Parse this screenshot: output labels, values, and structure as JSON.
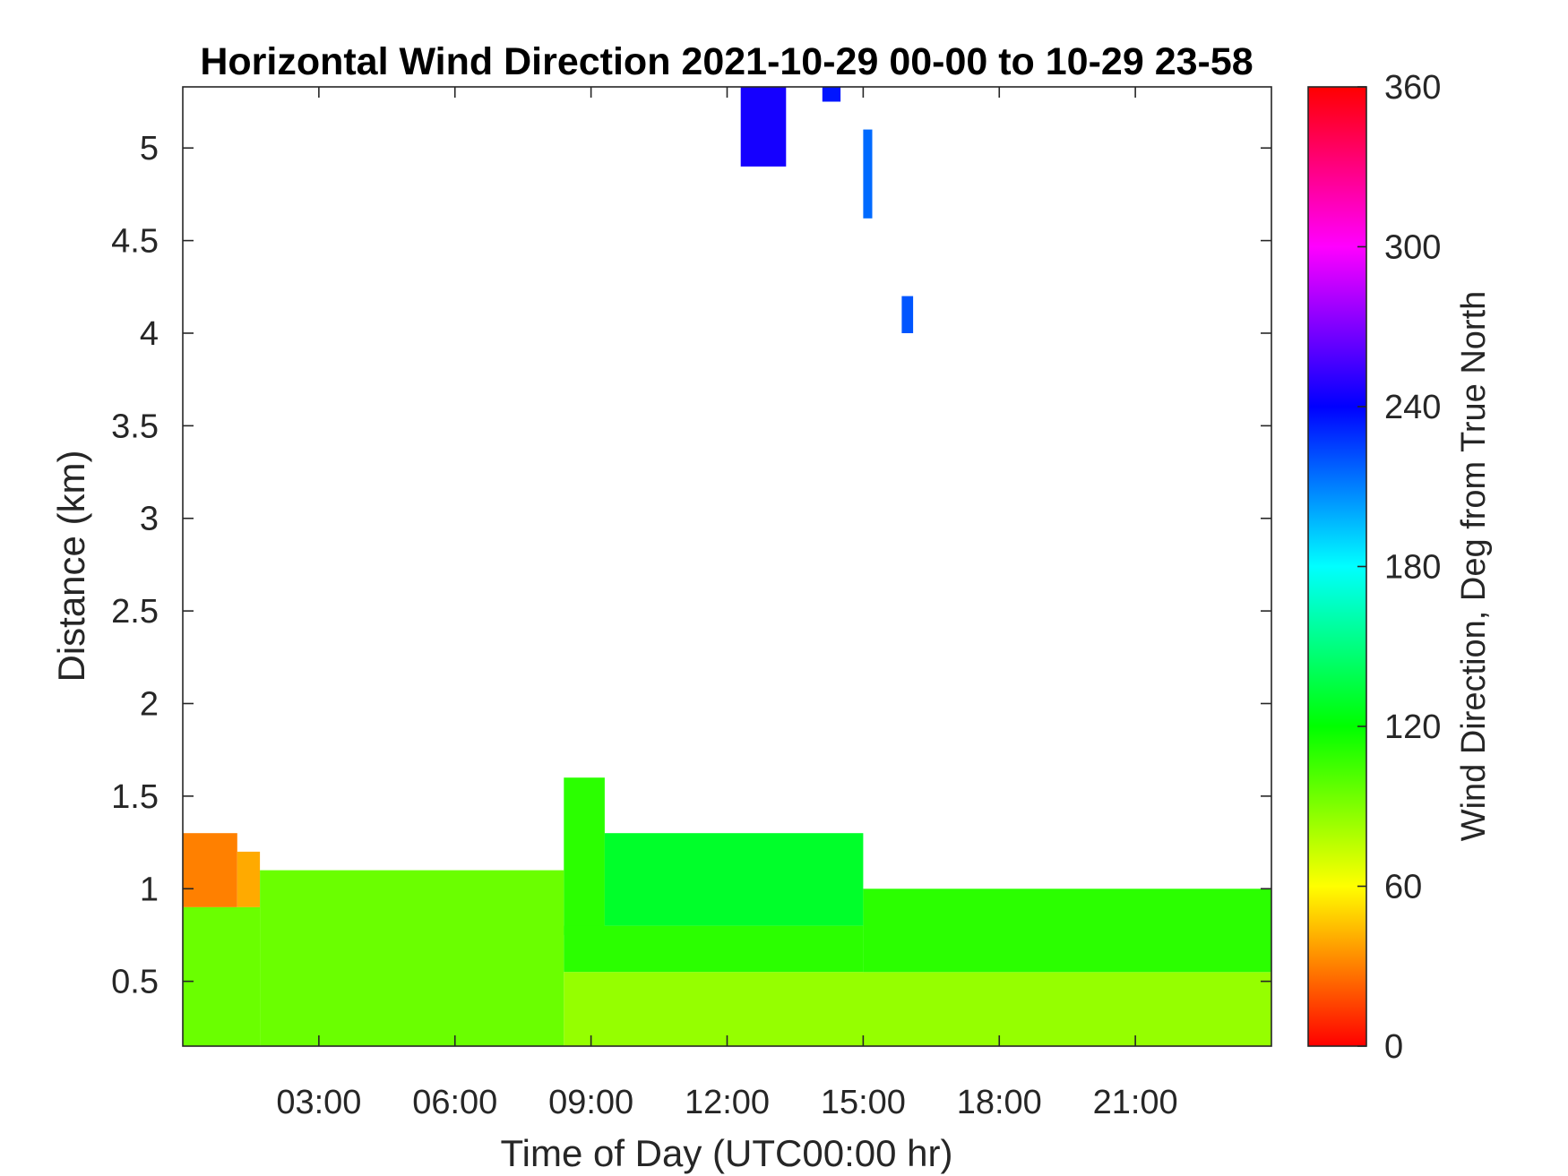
{
  "chart_data": {
    "type": "heatmap",
    "title": "Horizontal Wind Direction 2021-10-29 00-00 to 10-29 23-58",
    "xlabel": "Time of Day (UTC00:00 hr)",
    "ylabel": "Distance (km)",
    "colorbar_label": "Wind Direction, Deg from True North",
    "x_unit": "hours",
    "xlim": [
      0,
      24
    ],
    "ylim": [
      0.15,
      5.33
    ],
    "x_ticks": [
      3,
      6,
      9,
      12,
      15,
      18,
      21
    ],
    "x_tick_labels": [
      "03:00",
      "06:00",
      "09:00",
      "12:00",
      "15:00",
      "18:00",
      "21:00"
    ],
    "y_ticks": [
      0.5,
      1,
      1.5,
      2,
      2.5,
      3,
      3.5,
      4,
      4.5,
      5
    ],
    "y_tick_labels": [
      "0.5",
      "1",
      "1.5",
      "2",
      "2.5",
      "3",
      "3.5",
      "4",
      "4.5",
      "5"
    ],
    "colorbar": {
      "range": [
        0,
        360
      ],
      "ticks": [
        0,
        60,
        120,
        180,
        240,
        300,
        360
      ],
      "tick_labels": [
        "0",
        "60",
        "120",
        "180",
        "240",
        "300",
        "360"
      ],
      "colormap": "hsv",
      "colors": [
        "#ff0000",
        "#ffff00",
        "#00ff00",
        "#00ffff",
        "#0000ff",
        "#ff00ff",
        "#ff0000"
      ]
    },
    "grid": false,
    "regions": [
      {
        "x": [
          0.0,
          1.2
        ],
        "y": [
          0.9,
          1.3
        ],
        "direction_deg": 30
      },
      {
        "x": [
          1.2,
          1.7
        ],
        "y": [
          0.9,
          1.2
        ],
        "direction_deg": 40
      },
      {
        "x": [
          0.0,
          1.7
        ],
        "y": [
          0.15,
          0.9
        ],
        "direction_deg": 95
      },
      {
        "x": [
          1.7,
          8.4
        ],
        "y": [
          0.15,
          1.1
        ],
        "direction_deg": 95
      },
      {
        "x": [
          8.4,
          9.3
        ],
        "y": [
          0.75,
          1.6
        ],
        "direction_deg": 110
      },
      {
        "x": [
          9.3,
          15.0
        ],
        "y": [
          0.8,
          1.3
        ],
        "direction_deg": 130
      },
      {
        "x": [
          8.4,
          15.0
        ],
        "y": [
          0.55,
          0.8
        ],
        "direction_deg": 110
      },
      {
        "x": [
          8.4,
          24.0
        ],
        "y": [
          0.15,
          0.55
        ],
        "direction_deg": 85
      },
      {
        "x": [
          15.0,
          24.0
        ],
        "y": [
          0.55,
          1.0
        ],
        "direction_deg": 110
      },
      {
        "x": [
          12.3,
          13.3
        ],
        "y": [
          4.9,
          5.33
        ],
        "direction_deg": 245
      },
      {
        "x": [
          14.1,
          14.5
        ],
        "y": [
          5.25,
          5.33
        ],
        "direction_deg": 235
      },
      {
        "x": [
          15.0,
          15.2
        ],
        "y": [
          4.62,
          5.1
        ],
        "direction_deg": 215
      },
      {
        "x": [
          15.85,
          16.1
        ],
        "y": [
          4.0,
          4.2
        ],
        "direction_deg": 220
      }
    ]
  }
}
